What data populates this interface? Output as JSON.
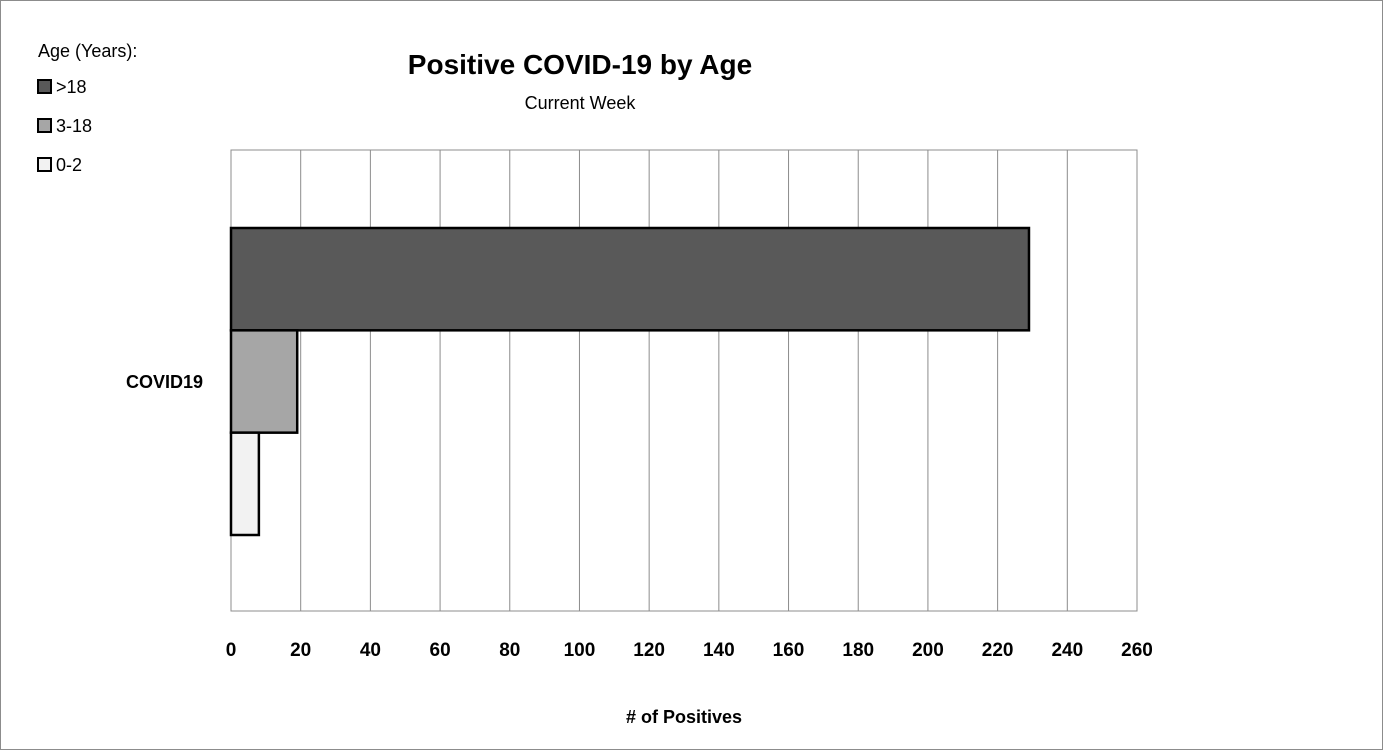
{
  "chart_data": {
    "type": "bar",
    "orientation": "horizontal",
    "title": "Positive COVID-19 by Age",
    "subtitle": "Current Week",
    "xlabel": "# of Positives",
    "ylabel": "",
    "categories": [
      "COVID19"
    ],
    "xlim": [
      0,
      260
    ],
    "xticks": [
      0,
      20,
      40,
      60,
      80,
      100,
      120,
      140,
      160,
      180,
      200,
      220,
      240,
      260
    ],
    "legend": {
      "title": "Age (Years):",
      "placement": "top-left"
    },
    "grid": true,
    "series": [
      {
        "name": ">18",
        "values": [
          229
        ],
        "color": "#595959"
      },
      {
        "name": "3-18",
        "values": [
          19
        ],
        "color": "#a6a6a6"
      },
      {
        "name": "0-2",
        "values": [
          8
        ],
        "color": "#f2f2f2"
      }
    ]
  }
}
